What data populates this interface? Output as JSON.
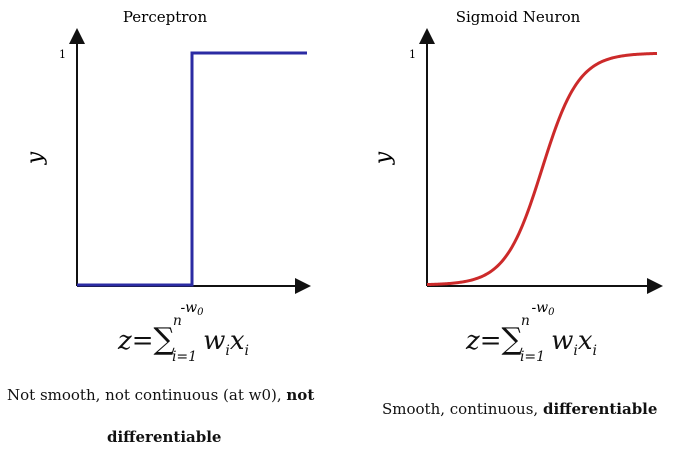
{
  "chart_data": [
    {
      "type": "line",
      "title": "Perceptron",
      "ylabel": "y",
      "xlabel": "",
      "y_ticks": [
        "1"
      ],
      "x_ticks": [
        "-w0"
      ],
      "x_threshold": 0,
      "xlim": [
        -5,
        5
      ],
      "ylim": [
        0,
        1
      ],
      "series": [
        {
          "color": "#2b2ba3",
          "points": [
            [
              -5,
              0
            ],
            [
              0,
              0
            ],
            [
              0,
              1
            ],
            [
              5,
              1
            ]
          ]
        }
      ],
      "formula": {
        "lhs": "z=",
        "sum": "∑",
        "sup": "n",
        "sub": "i=1",
        "rhs": "wixi"
      },
      "caption": {
        "line1": "Not smooth, not continuous (at w0), ",
        "line1_bold": "not",
        "line2_bold": "differentiable"
      }
    },
    {
      "type": "line",
      "title": "Sigmoid Neuron",
      "ylabel": "y",
      "xlabel": "",
      "y_ticks": [
        "1"
      ],
      "x_ticks": [
        "-w0"
      ],
      "xlim": [
        -5,
        5
      ],
      "ylim": [
        0,
        1
      ],
      "series": [
        {
          "color": "#cc2a2a",
          "function": "sigmoid"
        }
      ],
      "formula": {
        "lhs": "z=",
        "sum": "∑",
        "sup": "n",
        "sub": "i=1",
        "rhs": "wixi"
      },
      "caption": {
        "line1": "Smooth, continuous, ",
        "line1_bold": "differentiable"
      }
    }
  ]
}
